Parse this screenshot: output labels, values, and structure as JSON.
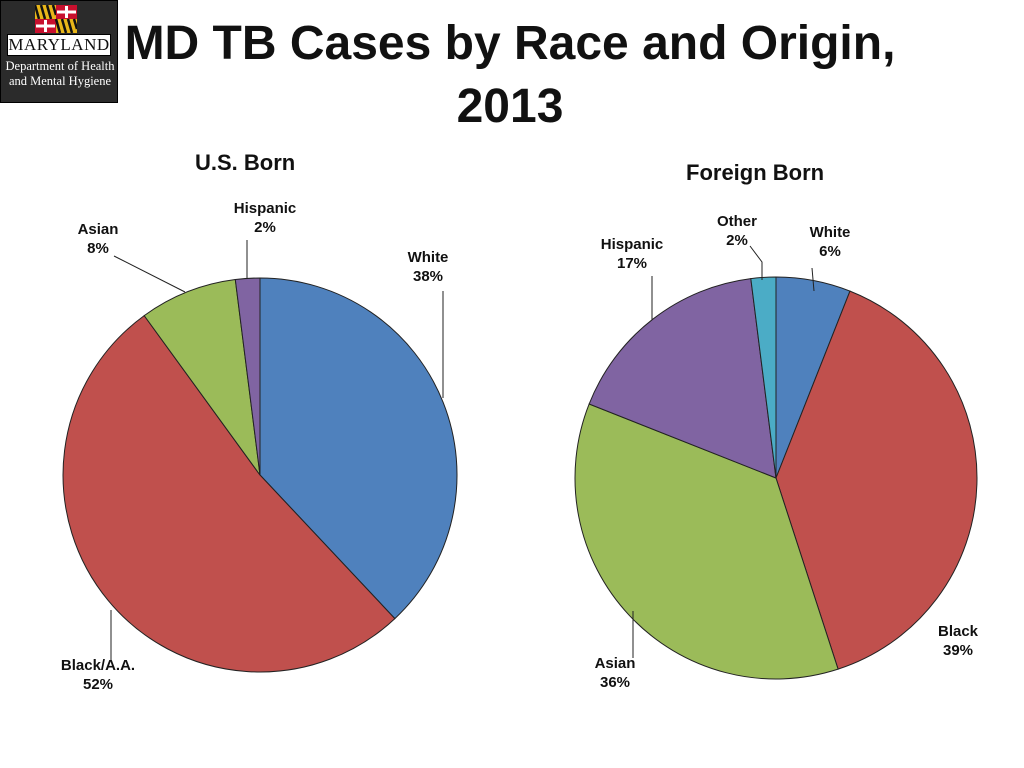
{
  "title": "MD TB Cases by Race and Origin, 2013",
  "logo": {
    "state": "MARYLAND",
    "dept_line1": "Department of Health",
    "dept_line2": "and Mental Hygiene"
  },
  "chart_data": [
    {
      "type": "pie",
      "title": "U.S. Born",
      "slices": [
        {
          "label": "White",
          "value": 38,
          "display": "38%",
          "color": "#4f81bd"
        },
        {
          "label": "Black/A.A.",
          "value": 52,
          "display": "52%",
          "color": "#c0504d"
        },
        {
          "label": "Asian",
          "value": 8,
          "display": "8%",
          "color": "#9bbb59"
        },
        {
          "label": "Hispanic",
          "value": 2,
          "display": "2%",
          "color": "#8064a2"
        }
      ]
    },
    {
      "type": "pie",
      "title": "Foreign Born",
      "slices": [
        {
          "label": "White",
          "value": 6,
          "display": "6%",
          "color": "#4f81bd"
        },
        {
          "label": "Black",
          "value": 39,
          "display": "39%",
          "color": "#c0504d"
        },
        {
          "label": "Asian",
          "value": 36,
          "display": "36%",
          "color": "#9bbb59"
        },
        {
          "label": "Hispanic",
          "value": 17,
          "display": "17%",
          "color": "#8064a2"
        },
        {
          "label": "Other",
          "value": 2,
          "display": "2%",
          "color": "#4bacc6"
        }
      ]
    }
  ]
}
